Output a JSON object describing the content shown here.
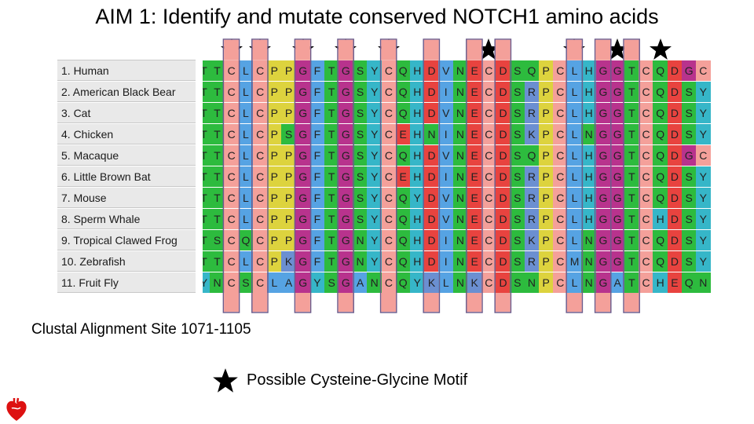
{
  "title": "AIM 1: Identify and mutate conserved NOTCH1 amino acids",
  "caption": "Clustal Alignment Site 1071-1105",
  "legend": {
    "label": "Possible Cysteine-Glycine Motif",
    "icon": "star-icon"
  },
  "logo": {
    "icon": "heart-logo-icon",
    "color": "#dd1111"
  },
  "species": [
    "1. Human",
    "2. American Black Bear",
    "3. Cat",
    "4. Chicken",
    "5. Macaque",
    "6. Little Brown Bat",
    "7. Mouse",
    "8. Sperm Whale",
    "9. Tropical Clawed Frog",
    "10. Zebrafish",
    "11. Fruit Fly"
  ],
  "sequences": [
    "TTCLCPPGFTGSYCQHDVNECDSQPCLHGGTCQDGC",
    "TTCLCPPGFTGSYCQHDINECDSRPCLHGGTCQDSY",
    "TTCLCPPGFTGSYCQHDVNECDSRPCLHGGTCQDSY",
    "TTCLCPSGFTGSYCEHNINECDSKPCLNGGTCQDSY",
    "TTCLCPPGFTGSYCQHDVNECDSQPCLHGGTCQDGC",
    "TTCLCPPGFTGSYCEHDINECDSRPCLHGGTCQDSY",
    "TTCLCPPGFTGSYCQYDVNECDSRPCLHGGTCQDSY",
    "TTCLCPPGFTGSYCQHDVNECDSRPCLHGGTCHDSY",
    "TSCQCPPGFTGNYCQHDINECDSKPCLNGGTCQDSY",
    "TTCLCPKGFTGNYCQHDINECDSRPCMNGGTCQDSY",
    "YNCSCLAGYSGANCQYKLNKCDSNPCLNGATCHEQN"
  ],
  "highlighted_columns": [
    2,
    4,
    7,
    10,
    13,
    16,
    19,
    21,
    26,
    28,
    30
  ],
  "star_columns": [
    2,
    4,
    7,
    10,
    13,
    20,
    26,
    29,
    32
  ],
  "colors": {
    "C": "#f4a09a",
    "G": "#b8338d",
    "P": "#ddd33e",
    "T": "#2dbb3e",
    "S": "#2dbb3e",
    "N": "#2dbb3e",
    "Q": "#2dbb3e",
    "E": "#e8433f",
    "D": "#e8433f",
    "K": "#6b8fd1",
    "R": "#6b8fd1",
    "H": "#36b6c8",
    "Y": "#36b6c8",
    "F": "#56a3e3",
    "L": "#56a3e3",
    "I": "#56a3e3",
    "V": "#56a3e3",
    "M": "#56a3e3",
    "A": "#56a3e3",
    "frame": "#6c5c8c"
  }
}
